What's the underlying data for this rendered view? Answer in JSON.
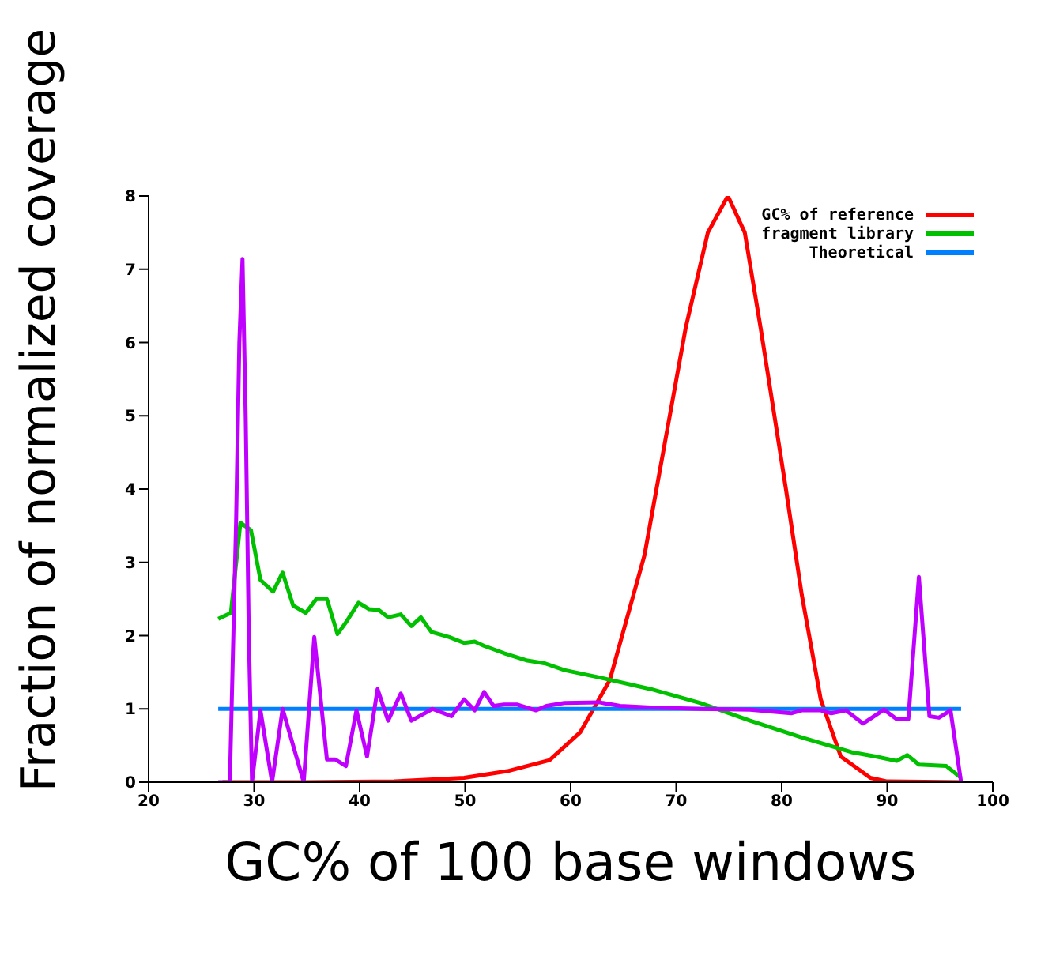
{
  "chart_data": {
    "type": "line",
    "xlabel": "GC% of 100 base windows",
    "ylabel": "Fraction of normalized coverage",
    "xlim": [
      20,
      100
    ],
    "xticks": [
      20,
      30,
      40,
      50,
      60,
      70,
      80,
      90,
      100
    ],
    "ylim": [
      0,
      8
    ],
    "yticks": [
      0,
      1,
      2,
      3,
      4,
      5,
      6,
      7,
      8
    ],
    "grid": false,
    "legend": "top right",
    "marker": "none",
    "line_style": "solid",
    "series": [
      {
        "name": "GC% of reference",
        "color": "#ff0000",
        "x": [
          27,
          35,
          43.3,
          49.9,
          54,
          58,
          60.9,
          63.7,
          67,
          70.9,
          73,
          74.9,
          76.5,
          78,
          80.4,
          81.9,
          83.7,
          85.6,
          88.4,
          90,
          97
        ],
        "values": [
          0,
          0,
          0.01,
          0.06,
          0.15,
          0.3,
          0.68,
          1.39,
          3.1,
          6.2,
          7.5,
          8.0,
          7.5,
          6.2,
          4.0,
          2.56,
          1.13,
          0.35,
          0.06,
          0.01,
          0
        ]
      },
      {
        "name": "fragment library",
        "color": "#00c000",
        "x": [
          26.6,
          27.8,
          28.7,
          29.7,
          30.6,
          31.8,
          32.7,
          33.7,
          34.9,
          35.9,
          36.9,
          37.9,
          38.7,
          39.9,
          40.9,
          41.8,
          42.7,
          43.9,
          44.9,
          45.8,
          46.8,
          48.5,
          49.9,
          50.9,
          51.8,
          53.7,
          55.9,
          57.6,
          59.4,
          62.7,
          67.6,
          72.3,
          77,
          81.9,
          86.6,
          88.9,
          90.9,
          91.9,
          93,
          95.6,
          97
        ],
        "values": [
          2.23,
          2.31,
          3.54,
          3.44,
          2.76,
          2.6,
          2.86,
          2.41,
          2.31,
          2.5,
          2.5,
          2.02,
          2.18,
          2.45,
          2.36,
          2.35,
          2.25,
          2.29,
          2.13,
          2.25,
          2.05,
          1.98,
          1.9,
          1.92,
          1.86,
          1.76,
          1.66,
          1.62,
          1.53,
          1.43,
          1.27,
          1.08,
          0.84,
          0.61,
          0.41,
          0.35,
          0.29,
          0.37,
          0.24,
          0.22,
          0.06
        ]
      },
      {
        "name": "Theoretical",
        "color": "#0080ff",
        "x": [
          26.6,
          97
        ],
        "values": [
          1,
          1
        ]
      },
      {
        "color": "#c000ff",
        "x": [
          26.6,
          27.7,
          28.3,
          28.6,
          28.9,
          29.2,
          29.5,
          29.8,
          30.6,
          31.7,
          32.7,
          34.7,
          35.7,
          36.9,
          37.7,
          38.7,
          39.7,
          40.7,
          41.7,
          42.7,
          43.9,
          44.9,
          46.9,
          48.7,
          49.9,
          50.9,
          51.8,
          52.7,
          53.7,
          54.9,
          56.7,
          57.7,
          59.4,
          62.7,
          64.7,
          67.6,
          72.3,
          77,
          80.9,
          81.9,
          83.7,
          84.7,
          86.1,
          87.7,
          89.7,
          90.9,
          92,
          93,
          94,
          94.9,
          96,
          97
        ],
        "values": [
          0,
          0,
          3.6,
          6.0,
          7.14,
          5.0,
          2.0,
          0,
          0.98,
          0,
          1.0,
          0,
          1.98,
          0.31,
          0.31,
          0.22,
          0.98,
          0.35,
          1.27,
          0.84,
          1.21,
          0.84,
          1.0,
          0.9,
          1.13,
          0.98,
          1.23,
          1.04,
          1.06,
          1.06,
          0.98,
          1.04,
          1.08,
          1.09,
          1.04,
          1.02,
          1.0,
          0.99,
          0.94,
          0.98,
          0.98,
          0.94,
          0.98,
          0.8,
          0.99,
          0.86,
          0.86,
          2.8,
          0.9,
          0.88,
          0.98,
          0
        ]
      }
    ]
  }
}
